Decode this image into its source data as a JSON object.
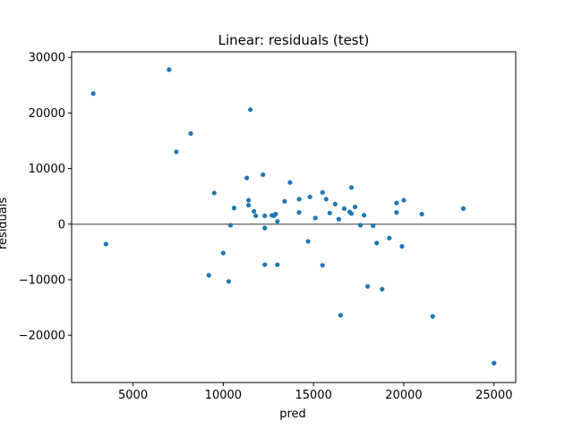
{
  "chart_data": {
    "type": "scatter",
    "title": "Linear: residuals (test)",
    "xlabel": "pred",
    "ylabel": "residuals",
    "xlim": [
      1600,
      26200
    ],
    "ylim": [
      -28500,
      31000
    ],
    "xticks": [
      5000,
      10000,
      15000,
      20000,
      25000
    ],
    "yticks": [
      -20000,
      -10000,
      0,
      10000,
      20000,
      30000
    ],
    "grid": false,
    "reference_line": {
      "y": 0,
      "color": "#808080"
    },
    "point_color": "#1f77b4",
    "series": [
      {
        "points": [
          [
            2800,
            23500
          ],
          [
            3500,
            -3600
          ],
          [
            7000,
            27800
          ],
          [
            7400,
            13000
          ],
          [
            8200,
            16300
          ],
          [
            9200,
            -9200
          ],
          [
            9500,
            5600
          ],
          [
            10000,
            -5200
          ],
          [
            10300,
            -10300
          ],
          [
            10400,
            -200
          ],
          [
            10600,
            2900
          ],
          [
            11300,
            8300
          ],
          [
            11400,
            3400
          ],
          [
            11400,
            4300
          ],
          [
            11500,
            20600
          ],
          [
            11700,
            2300
          ],
          [
            11800,
            1500
          ],
          [
            12200,
            8900
          ],
          [
            12300,
            1500
          ],
          [
            12300,
            -700
          ],
          [
            12300,
            -7300
          ],
          [
            12700,
            1600
          ],
          [
            12800,
            1500
          ],
          [
            12900,
            1800
          ],
          [
            13000,
            500
          ],
          [
            13000,
            -7300
          ],
          [
            13400,
            4100
          ],
          [
            13700,
            7500
          ],
          [
            14200,
            4500
          ],
          [
            14200,
            2100
          ],
          [
            14700,
            -3100
          ],
          [
            14800,
            4900
          ],
          [
            15100,
            1100
          ],
          [
            15500,
            -7400
          ],
          [
            15500,
            5700
          ],
          [
            15700,
            4500
          ],
          [
            15900,
            2000
          ],
          [
            16200,
            3600
          ],
          [
            16400,
            900
          ],
          [
            16500,
            -16400
          ],
          [
            16700,
            2800
          ],
          [
            17000,
            2200
          ],
          [
            17100,
            1900
          ],
          [
            17100,
            6600
          ],
          [
            17300,
            3100
          ],
          [
            17600,
            -200
          ],
          [
            17800,
            1600
          ],
          [
            18000,
            -11200
          ],
          [
            18300,
            -300
          ],
          [
            18500,
            -3400
          ],
          [
            18800,
            -11700
          ],
          [
            19200,
            -2500
          ],
          [
            19600,
            2100
          ],
          [
            19600,
            3800
          ],
          [
            19900,
            -4000
          ],
          [
            20000,
            4300
          ],
          [
            21000,
            1800
          ],
          [
            21600,
            -16600
          ],
          [
            23300,
            2800
          ],
          [
            25000,
            -25000
          ]
        ]
      }
    ]
  }
}
